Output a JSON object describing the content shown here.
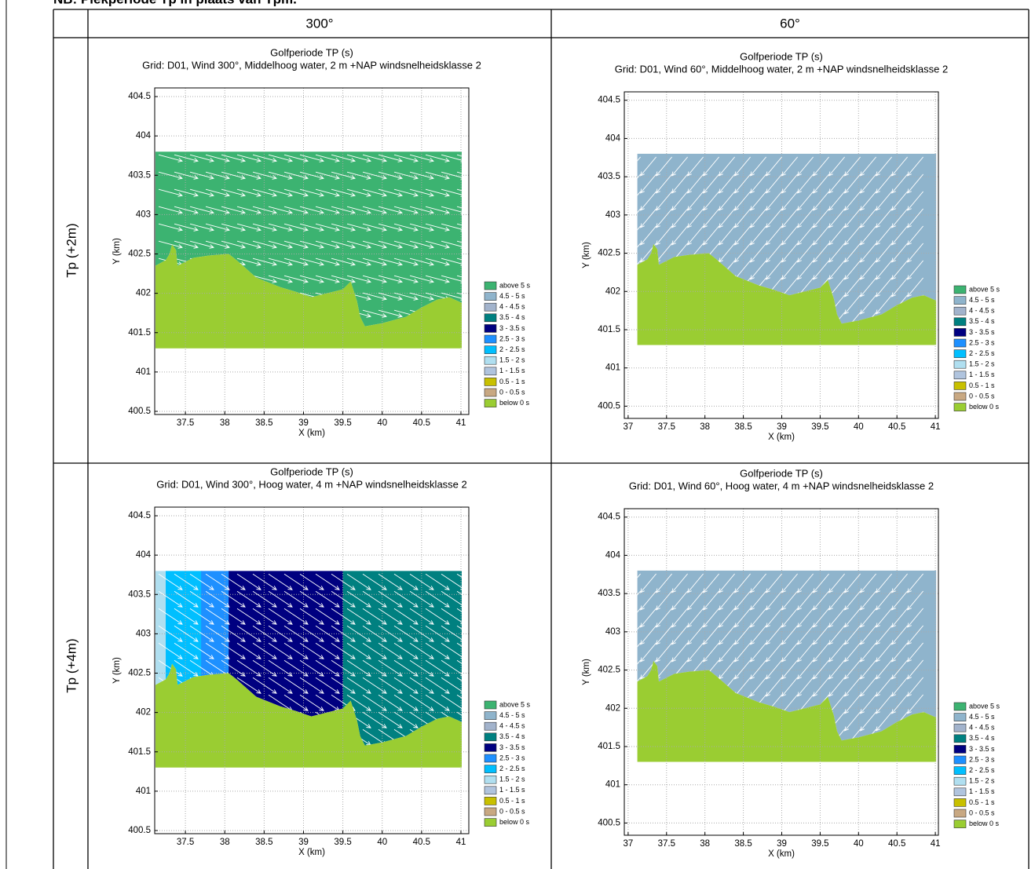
{
  "note": "NB: Piekperiode Tp in plaats van Tpm.",
  "legend": {
    "labels": [
      "above 5 s",
      "4.5 - 5 s",
      "4 - 4.5 s",
      "3.5 - 4 s",
      "3 - 3.5 s",
      "2.5 - 3 s",
      "2 - 2.5 s",
      "1.5 - 2 s",
      "1 - 1.5 s",
      "0.5 - 1 s",
      "0 - 0.5 s",
      "below 0 s"
    ],
    "colors": [
      "#3cb371",
      "#8fb4cc",
      "#a2b3cc",
      "#008080",
      "#000080",
      "#1e90ff",
      "#00bfff",
      "#b0dff0",
      "#b0c4de",
      "#c8c000",
      "#c8a882",
      "#9acd32"
    ]
  },
  "table": {
    "columns": [
      "300°",
      "60°"
    ],
    "rows": [
      {
        "label": "Tp (+2m)",
        "plots": [
          {
            "title": "Golfperiode TP (s)",
            "subtitle": "Grid: D01, Wind 300°, Middelhoog water, 2 m +NAP windsnelheidsklasse 2",
            "xlabel": "X (km)",
            "ylabel": "Y (km)",
            "xlim": [
              37.11,
              41.1
            ],
            "ylim": [
              400.46,
              404.61
            ],
            "xticks": [
              37.5,
              38,
              38.5,
              39,
              39.5,
              40,
              40.5,
              41
            ],
            "yticks": [
              400.5,
              401,
              401.5,
              402,
              402.5,
              403,
              403.5,
              404,
              404.5
            ],
            "water_classes": [
              0
            ],
            "wind": 300
          },
          {
            "title": "Golfperiode TP (s)",
            "subtitle": "Grid: D01, Wind 60°, Middelhoog water, 2 m +NAP windsnelheidsklasse 2",
            "xlabel": "X (km)",
            "ylabel": "Y (km)",
            "xlim": [
              36.95,
              41.04
            ],
            "ylim": [
              400.34,
              404.61
            ],
            "xticks": [
              37,
              37.5,
              38,
              38.5,
              39,
              39.5,
              40,
              40.5,
              41
            ],
            "yticks": [
              400.5,
              401,
              401.5,
              402,
              402.5,
              403,
              403.5,
              404,
              404.5
            ],
            "water_classes": [
              1
            ],
            "wind": 60
          }
        ]
      },
      {
        "label": "Tp (+4m)",
        "plots": [
          {
            "title": "Golfperiode TP (s)",
            "subtitle": "Grid: D01, Wind 300°, Hoog water, 4 m +NAP windsnelheidsklasse 2",
            "xlabel": "X (km)",
            "ylabel": "Y (km)",
            "xlim": [
              37.11,
              41.1
            ],
            "ylim": [
              400.46,
              404.61
            ],
            "xticks": [
              37.5,
              38,
              38.5,
              39,
              39.5,
              40,
              40.5,
              41
            ],
            "yticks": [
              400.5,
              401,
              401.5,
              402,
              402.5,
              403,
              403.5,
              404,
              404.5
            ],
            "water_classes": [
              7,
              6,
              5,
              4,
              3
            ],
            "wind": 300
          },
          {
            "title": "Golfperiode TP (s)",
            "subtitle": "Grid: D01, Wind 60°, Hoog water, 4 m +NAP windsnelheidsklasse 2",
            "xlabel": "X (km)",
            "ylabel": "Y (km)",
            "xlim": [
              36.95,
              41.04
            ],
            "ylim": [
              400.34,
              404.61
            ],
            "xticks": [
              37,
              37.5,
              38,
              38.5,
              39,
              39.5,
              40,
              40.5,
              41
            ],
            "yticks": [
              400.5,
              401,
              401.5,
              402,
              402.5,
              403,
              403.5,
              404,
              404.5
            ],
            "water_classes": [
              1
            ],
            "wind": 60
          }
        ]
      }
    ]
  }
}
